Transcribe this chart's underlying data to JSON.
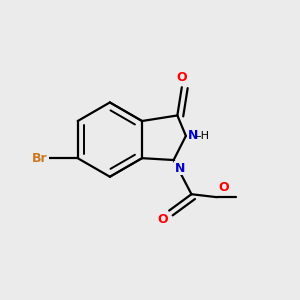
{
  "background_color": "#ebebeb",
  "bond_color": "#000000",
  "bond_width": 1.6,
  "colors": {
    "C": "#000000",
    "N": "#0000cc",
    "O": "#ff0000",
    "Br": "#cc7722",
    "H": "#000000"
  },
  "font_size": 9.0
}
